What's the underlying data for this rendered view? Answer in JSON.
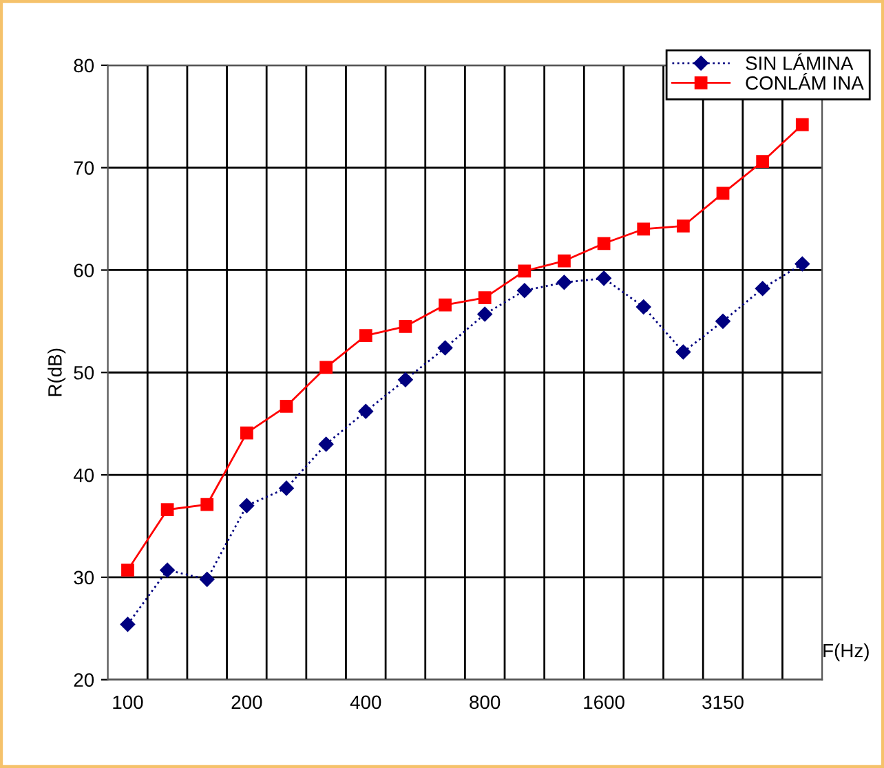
{
  "chart_data": {
    "type": "line",
    "xlabel": "F(Hz)",
    "ylabel": "R(dB)",
    "categories": [
      "100",
      null,
      null,
      "200",
      null,
      null,
      "400",
      null,
      null,
      "800",
      null,
      null,
      "1600",
      null,
      null,
      "3150",
      null,
      null
    ],
    "series": [
      {
        "name": "SIN LÁMINA",
        "color": "#000080",
        "marker": "diamond",
        "line_style": "dotted",
        "values": [
          25.4,
          30.7,
          29.8,
          37.0,
          38.7,
          43.0,
          46.2,
          49.3,
          52.4,
          55.7,
          58.0,
          58.8,
          59.2,
          56.4,
          52.0,
          55.0,
          58.2,
          60.6
        ]
      },
      {
        "name": "CONLÁM INA",
        "color": "#ff0000",
        "marker": "square",
        "line_style": "solid",
        "values": [
          30.7,
          36.6,
          37.1,
          44.1,
          46.7,
          50.5,
          53.6,
          54.5,
          56.6,
          57.3,
          59.9,
          60.9,
          62.6,
          64.0,
          64.3,
          67.5,
          70.6,
          74.2
        ]
      }
    ],
    "ylim": [
      20,
      80
    ],
    "yticks": [
      20,
      30,
      40,
      50,
      60,
      70,
      80
    ],
    "grid": true,
    "legend": "top right"
  }
}
